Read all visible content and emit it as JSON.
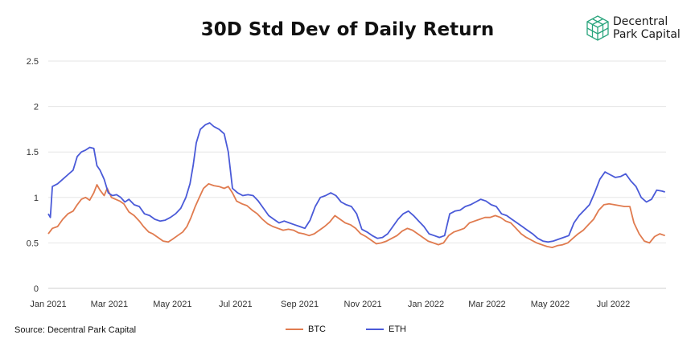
{
  "page_title": "30D Std Dev of Daily Return",
  "brand": {
    "line1": "Decentral",
    "line2": "Park Capital",
    "accent": "#2aa57d"
  },
  "source_text": "Source: Decentral Park Capital",
  "chart_data": {
    "type": "line",
    "title": "30D Std Dev of Daily Return",
    "xlabel": "",
    "ylabel": "",
    "x_range": [
      "2021-01-01",
      "2022-08-21"
    ],
    "ylim": [
      0,
      2.5
    ],
    "y_ticks": [
      0,
      0.5,
      1,
      1.5,
      2,
      2.5
    ],
    "y_tick_labels": [
      "0",
      "0.5",
      "1",
      "1.5",
      "2",
      "2.5"
    ],
    "x_ticks": [
      "2021-01-01",
      "2021-03-01",
      "2021-05-01",
      "2021-07-01",
      "2021-09-01",
      "2021-11-01",
      "2022-01-01",
      "2022-03-01",
      "2022-05-01",
      "2022-07-01"
    ],
    "x_tick_labels": [
      "Jan 2021",
      "Mar 2021",
      "May 2021",
      "Jul 2021",
      "Sep 2021",
      "Nov 2021",
      "Jan 2022",
      "Mar 2022",
      "May 2022",
      "Jul 2022"
    ],
    "grid": "horizontal",
    "legend": "bottom",
    "series": [
      {
        "name": "BTC",
        "color": "#e07b4f",
        "points": [
          [
            "2021-01-01",
            0.6
          ],
          [
            "2021-01-05",
            0.66
          ],
          [
            "2021-01-10",
            0.68
          ],
          [
            "2021-01-15",
            0.76
          ],
          [
            "2021-01-20",
            0.82
          ],
          [
            "2021-01-25",
            0.85
          ],
          [
            "2021-01-29",
            0.92
          ],
          [
            "2021-02-02",
            0.98
          ],
          [
            "2021-02-06",
            1.0
          ],
          [
            "2021-02-10",
            0.97
          ],
          [
            "2021-02-14",
            1.05
          ],
          [
            "2021-02-17",
            1.14
          ],
          [
            "2021-02-20",
            1.08
          ],
          [
            "2021-02-24",
            1.02
          ],
          [
            "2021-02-27",
            1.1
          ],
          [
            "2021-03-03",
            1.0
          ],
          [
            "2021-03-07",
            0.98
          ],
          [
            "2021-03-11",
            0.96
          ],
          [
            "2021-03-15",
            0.93
          ],
          [
            "2021-03-20",
            0.84
          ],
          [
            "2021-03-25",
            0.8
          ],
          [
            "2021-03-30",
            0.74
          ],
          [
            "2021-04-03",
            0.68
          ],
          [
            "2021-04-08",
            0.62
          ],
          [
            "2021-04-12",
            0.6
          ],
          [
            "2021-04-17",
            0.56
          ],
          [
            "2021-04-22",
            0.52
          ],
          [
            "2021-04-27",
            0.51
          ],
          [
            "2021-05-01",
            0.54
          ],
          [
            "2021-05-06",
            0.58
          ],
          [
            "2021-05-11",
            0.62
          ],
          [
            "2021-05-15",
            0.68
          ],
          [
            "2021-05-19",
            0.78
          ],
          [
            "2021-05-23",
            0.9
          ],
          [
            "2021-05-27",
            1.0
          ],
          [
            "2021-05-31",
            1.1
          ],
          [
            "2021-06-05",
            1.15
          ],
          [
            "2021-06-10",
            1.13
          ],
          [
            "2021-06-15",
            1.12
          ],
          [
            "2021-06-20",
            1.1
          ],
          [
            "2021-06-24",
            1.12
          ],
          [
            "2021-06-28",
            1.05
          ],
          [
            "2021-07-02",
            0.96
          ],
          [
            "2021-07-07",
            0.93
          ],
          [
            "2021-07-12",
            0.91
          ],
          [
            "2021-07-17",
            0.86
          ],
          [
            "2021-07-22",
            0.82
          ],
          [
            "2021-07-27",
            0.76
          ],
          [
            "2021-08-01",
            0.71
          ],
          [
            "2021-08-06",
            0.68
          ],
          [
            "2021-08-11",
            0.66
          ],
          [
            "2021-08-16",
            0.64
          ],
          [
            "2021-08-21",
            0.65
          ],
          [
            "2021-08-26",
            0.64
          ],
          [
            "2021-08-31",
            0.61
          ],
          [
            "2021-09-05",
            0.6
          ],
          [
            "2021-09-10",
            0.58
          ],
          [
            "2021-09-15",
            0.6
          ],
          [
            "2021-09-20",
            0.64
          ],
          [
            "2021-09-25",
            0.68
          ],
          [
            "2021-09-30",
            0.73
          ],
          [
            "2021-10-05",
            0.8
          ],
          [
            "2021-10-10",
            0.76
          ],
          [
            "2021-10-15",
            0.72
          ],
          [
            "2021-10-20",
            0.7
          ],
          [
            "2021-10-25",
            0.66
          ],
          [
            "2021-10-30",
            0.6
          ],
          [
            "2021-11-04",
            0.57
          ],
          [
            "2021-11-09",
            0.53
          ],
          [
            "2021-11-14",
            0.49
          ],
          [
            "2021-11-19",
            0.5
          ],
          [
            "2021-11-24",
            0.52
          ],
          [
            "2021-11-29",
            0.55
          ],
          [
            "2021-12-04",
            0.58
          ],
          [
            "2021-12-09",
            0.63
          ],
          [
            "2021-12-14",
            0.66
          ],
          [
            "2021-12-19",
            0.64
          ],
          [
            "2021-12-24",
            0.6
          ],
          [
            "2021-12-29",
            0.56
          ],
          [
            "2022-01-03",
            0.52
          ],
          [
            "2022-01-08",
            0.5
          ],
          [
            "2022-01-13",
            0.48
          ],
          [
            "2022-01-18",
            0.5
          ],
          [
            "2022-01-23",
            0.58
          ],
          [
            "2022-01-28",
            0.62
          ],
          [
            "2022-02-02",
            0.64
          ],
          [
            "2022-02-07",
            0.66
          ],
          [
            "2022-02-12",
            0.72
          ],
          [
            "2022-02-17",
            0.74
          ],
          [
            "2022-02-22",
            0.76
          ],
          [
            "2022-02-27",
            0.78
          ],
          [
            "2022-03-04",
            0.78
          ],
          [
            "2022-03-09",
            0.8
          ],
          [
            "2022-03-14",
            0.78
          ],
          [
            "2022-03-19",
            0.74
          ],
          [
            "2022-03-24",
            0.72
          ],
          [
            "2022-03-29",
            0.66
          ],
          [
            "2022-04-03",
            0.6
          ],
          [
            "2022-04-08",
            0.56
          ],
          [
            "2022-04-13",
            0.53
          ],
          [
            "2022-04-18",
            0.5
          ],
          [
            "2022-04-23",
            0.48
          ],
          [
            "2022-04-28",
            0.46
          ],
          [
            "2022-05-03",
            0.45
          ],
          [
            "2022-05-08",
            0.47
          ],
          [
            "2022-05-13",
            0.48
          ],
          [
            "2022-05-18",
            0.5
          ],
          [
            "2022-05-23",
            0.55
          ],
          [
            "2022-05-28",
            0.6
          ],
          [
            "2022-06-02",
            0.64
          ],
          [
            "2022-06-07",
            0.7
          ],
          [
            "2022-06-12",
            0.76
          ],
          [
            "2022-06-17",
            0.86
          ],
          [
            "2022-06-22",
            0.92
          ],
          [
            "2022-06-27",
            0.93
          ],
          [
            "2022-07-02",
            0.92
          ],
          [
            "2022-07-07",
            0.91
          ],
          [
            "2022-07-12",
            0.9
          ],
          [
            "2022-07-17",
            0.9
          ],
          [
            "2022-07-21",
            0.72
          ],
          [
            "2022-07-26",
            0.6
          ],
          [
            "2022-07-31",
            0.52
          ],
          [
            "2022-08-05",
            0.5
          ],
          [
            "2022-08-10",
            0.57
          ],
          [
            "2022-08-15",
            0.6
          ],
          [
            "2022-08-20",
            0.58
          ]
        ]
      },
      {
        "name": "ETH",
        "color": "#4a5ad8",
        "points": [
          [
            "2021-01-01",
            0.82
          ],
          [
            "2021-01-03",
            0.78
          ],
          [
            "2021-01-05",
            1.12
          ],
          [
            "2021-01-10",
            1.15
          ],
          [
            "2021-01-15",
            1.2
          ],
          [
            "2021-01-20",
            1.25
          ],
          [
            "2021-01-25",
            1.3
          ],
          [
            "2021-01-29",
            1.45
          ],
          [
            "2021-02-02",
            1.5
          ],
          [
            "2021-02-06",
            1.52
          ],
          [
            "2021-02-10",
            1.55
          ],
          [
            "2021-02-14",
            1.54
          ],
          [
            "2021-02-17",
            1.35
          ],
          [
            "2021-02-20",
            1.3
          ],
          [
            "2021-02-24",
            1.2
          ],
          [
            "2021-02-28",
            1.05
          ],
          [
            "2021-03-04",
            1.02
          ],
          [
            "2021-03-08",
            1.03
          ],
          [
            "2021-03-12",
            1.0
          ],
          [
            "2021-03-16",
            0.95
          ],
          [
            "2021-03-20",
            0.98
          ],
          [
            "2021-03-25",
            0.92
          ],
          [
            "2021-03-30",
            0.9
          ],
          [
            "2021-04-04",
            0.82
          ],
          [
            "2021-04-09",
            0.8
          ],
          [
            "2021-04-14",
            0.76
          ],
          [
            "2021-04-19",
            0.74
          ],
          [
            "2021-04-24",
            0.75
          ],
          [
            "2021-04-29",
            0.78
          ],
          [
            "2021-05-04",
            0.82
          ],
          [
            "2021-05-09",
            0.88
          ],
          [
            "2021-05-14",
            1.0
          ],
          [
            "2021-05-18",
            1.15
          ],
          [
            "2021-05-21",
            1.35
          ],
          [
            "2021-05-24",
            1.6
          ],
          [
            "2021-05-28",
            1.75
          ],
          [
            "2021-06-02",
            1.8
          ],
          [
            "2021-06-06",
            1.82
          ],
          [
            "2021-06-10",
            1.78
          ],
          [
            "2021-06-15",
            1.75
          ],
          [
            "2021-06-20",
            1.7
          ],
          [
            "2021-06-24",
            1.5
          ],
          [
            "2021-06-28",
            1.1
          ],
          [
            "2021-07-03",
            1.05
          ],
          [
            "2021-07-08",
            1.02
          ],
          [
            "2021-07-13",
            1.03
          ],
          [
            "2021-07-18",
            1.02
          ],
          [
            "2021-07-23",
            0.96
          ],
          [
            "2021-07-28",
            0.88
          ],
          [
            "2021-08-02",
            0.8
          ],
          [
            "2021-08-07",
            0.76
          ],
          [
            "2021-08-12",
            0.72
          ],
          [
            "2021-08-17",
            0.74
          ],
          [
            "2021-08-22",
            0.72
          ],
          [
            "2021-08-27",
            0.7
          ],
          [
            "2021-09-01",
            0.68
          ],
          [
            "2021-09-06",
            0.66
          ],
          [
            "2021-09-11",
            0.75
          ],
          [
            "2021-09-16",
            0.9
          ],
          [
            "2021-09-21",
            1.0
          ],
          [
            "2021-09-26",
            1.02
          ],
          [
            "2021-10-01",
            1.05
          ],
          [
            "2021-10-06",
            1.02
          ],
          [
            "2021-10-11",
            0.95
          ],
          [
            "2021-10-16",
            0.92
          ],
          [
            "2021-10-21",
            0.9
          ],
          [
            "2021-10-26",
            0.82
          ],
          [
            "2021-10-31",
            0.65
          ],
          [
            "2021-11-05",
            0.62
          ],
          [
            "2021-11-10",
            0.58
          ],
          [
            "2021-11-15",
            0.55
          ],
          [
            "2021-11-20",
            0.56
          ],
          [
            "2021-11-25",
            0.6
          ],
          [
            "2021-11-30",
            0.68
          ],
          [
            "2021-12-05",
            0.76
          ],
          [
            "2021-12-10",
            0.82
          ],
          [
            "2021-12-15",
            0.85
          ],
          [
            "2021-12-20",
            0.8
          ],
          [
            "2021-12-25",
            0.74
          ],
          [
            "2021-12-30",
            0.68
          ],
          [
            "2022-01-04",
            0.6
          ],
          [
            "2022-01-09",
            0.58
          ],
          [
            "2022-01-14",
            0.56
          ],
          [
            "2022-01-19",
            0.58
          ],
          [
            "2022-01-24",
            0.82
          ],
          [
            "2022-01-29",
            0.85
          ],
          [
            "2022-02-03",
            0.86
          ],
          [
            "2022-02-08",
            0.9
          ],
          [
            "2022-02-13",
            0.92
          ],
          [
            "2022-02-18",
            0.95
          ],
          [
            "2022-02-23",
            0.98
          ],
          [
            "2022-02-28",
            0.96
          ],
          [
            "2022-03-05",
            0.92
          ],
          [
            "2022-03-10",
            0.9
          ],
          [
            "2022-03-15",
            0.82
          ],
          [
            "2022-03-20",
            0.8
          ],
          [
            "2022-03-25",
            0.76
          ],
          [
            "2022-03-30",
            0.72
          ],
          [
            "2022-04-04",
            0.68
          ],
          [
            "2022-04-09",
            0.64
          ],
          [
            "2022-04-14",
            0.6
          ],
          [
            "2022-04-19",
            0.55
          ],
          [
            "2022-04-24",
            0.52
          ],
          [
            "2022-04-29",
            0.51
          ],
          [
            "2022-05-04",
            0.52
          ],
          [
            "2022-05-09",
            0.54
          ],
          [
            "2022-05-14",
            0.56
          ],
          [
            "2022-05-19",
            0.58
          ],
          [
            "2022-05-24",
            0.72
          ],
          [
            "2022-05-29",
            0.8
          ],
          [
            "2022-06-03",
            0.86
          ],
          [
            "2022-06-08",
            0.92
          ],
          [
            "2022-06-13",
            1.05
          ],
          [
            "2022-06-18",
            1.2
          ],
          [
            "2022-06-23",
            1.28
          ],
          [
            "2022-06-28",
            1.25
          ],
          [
            "2022-07-03",
            1.22
          ],
          [
            "2022-07-08",
            1.23
          ],
          [
            "2022-07-13",
            1.26
          ],
          [
            "2022-07-18",
            1.18
          ],
          [
            "2022-07-23",
            1.12
          ],
          [
            "2022-07-28",
            1.0
          ],
          [
            "2022-08-02",
            0.95
          ],
          [
            "2022-08-07",
            0.98
          ],
          [
            "2022-08-12",
            1.08
          ],
          [
            "2022-08-17",
            1.07
          ],
          [
            "2022-08-20",
            1.06
          ]
        ]
      }
    ]
  }
}
